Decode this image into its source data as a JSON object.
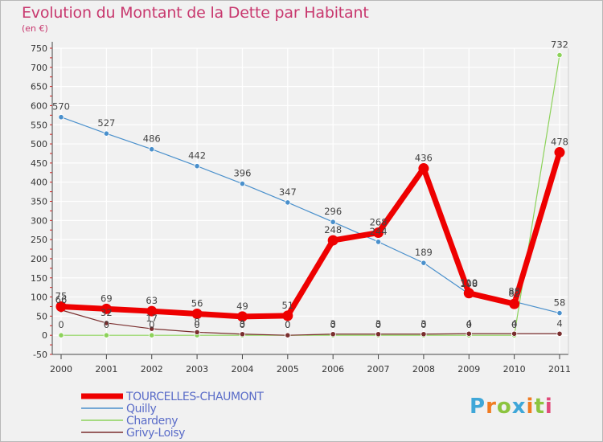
{
  "header": {
    "title": "Evolution du Montant de la Dette par Habitant",
    "subtitle": "(en €)"
  },
  "brand": {
    "letters": [
      "P",
      "r",
      "o",
      "x",
      "i",
      "t",
      "i"
    ],
    "colors": [
      "#3fa7d8",
      "#f07c22",
      "#8cc43f",
      "#3fa7d8",
      "#f07c22",
      "#8cc43f",
      "#e04a7a"
    ]
  },
  "chart_data": {
    "type": "line",
    "title": "Evolution du Montant de la Dette par Habitant",
    "ylabel": "(en €)",
    "xlabel": "",
    "x": [
      "2000",
      "2001",
      "2002",
      "2003",
      "2004",
      "2005",
      "2006",
      "2007",
      "2008",
      "2009",
      "2010",
      "2011"
    ],
    "ylim": [
      -50,
      750
    ],
    "yticks": [
      "-50",
      "0",
      "50",
      "100",
      "150",
      "200",
      "250",
      "300",
      "350",
      "400",
      "450",
      "500",
      "550",
      "600",
      "650",
      "700",
      "750"
    ],
    "grid": true,
    "legend": "bottom-left",
    "series": [
      {
        "name": "TOURCELLES-CHAUMONT",
        "color": "#ee0000",
        "values": [
          75,
          69,
          63,
          56,
          49,
          51,
          248,
          268,
          436,
          110,
          82,
          478
        ],
        "labels": [
          "75",
          "69",
          "63",
          "56",
          "49",
          "51",
          "248",
          "268",
          "436",
          "110",
          "82",
          "478"
        ]
      },
      {
        "name": "Quilly",
        "color": "#4a90cc",
        "values": [
          570,
          527,
          486,
          442,
          396,
          347,
          296,
          244,
          189,
          108,
          88,
          58
        ],
        "labels": [
          "570",
          "527",
          "486",
          "442",
          "396",
          "347",
          "296",
          "244",
          "189",
          "108",
          "88",
          "58"
        ]
      },
      {
        "name": "Chardeny",
        "color": "#8cd25a",
        "values": [
          0,
          0,
          0,
          0,
          0,
          0,
          0,
          0,
          0,
          0,
          0,
          732
        ],
        "labels": [
          "0",
          "0",
          "0",
          "0",
          "0",
          "0",
          "0",
          "0",
          "0",
          "0",
          "0",
          "732"
        ]
      },
      {
        "name": "Grivy-Loisy",
        "color": "#7a2e2e",
        "values": [
          66,
          32,
          17,
          8,
          3,
          0,
          3,
          3,
          3,
          4,
          4,
          4
        ],
        "labels": [
          "66",
          "32",
          "17",
          "8",
          "3",
          "0",
          "3",
          "3",
          "3",
          "4",
          "4",
          "4"
        ]
      }
    ]
  }
}
